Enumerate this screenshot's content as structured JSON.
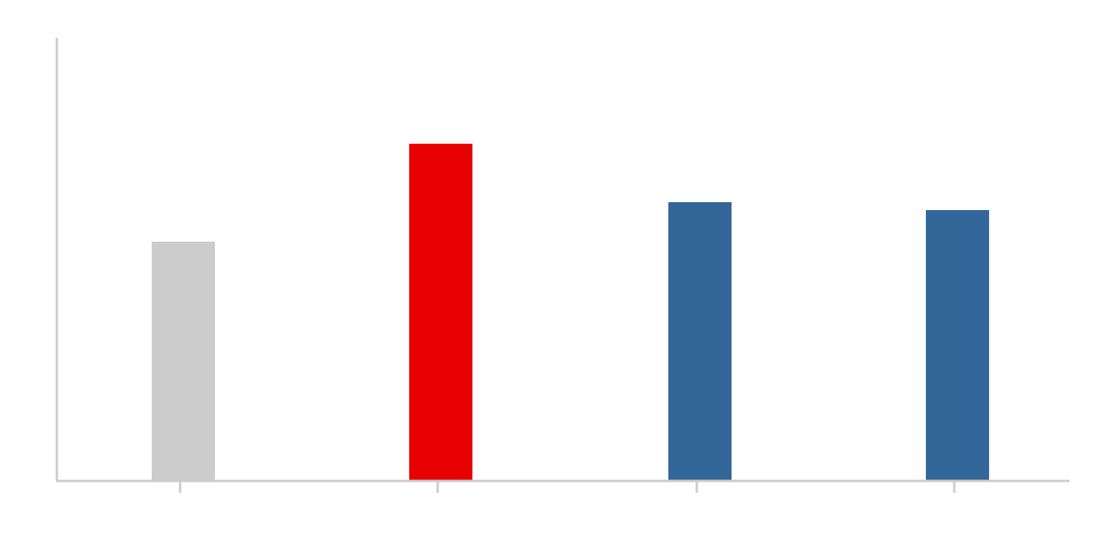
{
  "chart_data": {
    "type": "bar",
    "title": "",
    "xlabel": "",
    "ylabel": "",
    "categories": [
      "",
      "",
      "",
      ""
    ],
    "values": [
      302,
      426,
      352,
      342
    ],
    "bar_colors": [
      "#cccccc",
      "#e60000",
      "#336699",
      "#336699"
    ],
    "ylim": [
      0,
      560
    ],
    "grid": false,
    "legend": "none"
  },
  "colors": {
    "axis": "#cccccc",
    "background": "#ffffff"
  }
}
